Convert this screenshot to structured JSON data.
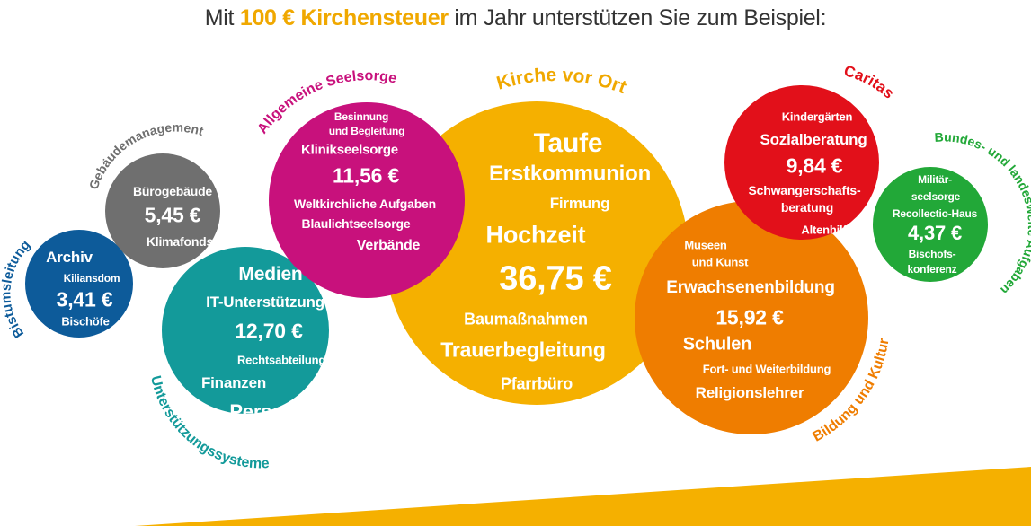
{
  "title": {
    "prefix": "Mit ",
    "highlight": "100 € Kirchensteuer",
    "suffix": " im Jahr unterstützen Sie zum Beispiel:"
  },
  "colors": {
    "orange_yellow": "#f5b000",
    "orange": "#ef7d00",
    "red": "#e2101a",
    "green": "#22a838",
    "teal": "#139a9a",
    "magenta": "#c8117c",
    "gray": "#6f6f6f",
    "blue": "#0d5b9a"
  },
  "categories": {
    "bistumsleitung": {
      "label": "Bistumsleitung",
      "items": [
        "Archiv",
        "Kiliansdom",
        "Bischöfe"
      ],
      "amount": "3,41 €"
    },
    "gebaeude": {
      "label": "Gebäudemanagement",
      "items": [
        "Bürogebäude",
        "Klimafonds"
      ],
      "amount": "5,45 €"
    },
    "seelsorge": {
      "label": "Allgemeine Seelsorge",
      "items": [
        "Besinnung",
        "und Begleitung",
        "Klinikseelsorge",
        "Weltkirchliche Aufgaben",
        "Blaulichtseelsorge",
        "Verbände"
      ],
      "amount": "11,56 €"
    },
    "unterstuetzung": {
      "label": "Unterstützungssysteme",
      "items": [
        "Medien",
        "IT-Unterstützung",
        "Rechtsabteilung",
        "Finanzen",
        "Personal"
      ],
      "amount": "12,70 €"
    },
    "kirche": {
      "label": "Kirche vor Ort",
      "items": [
        "Taufe",
        "Erstkommunion",
        "Firmung",
        "Hochzeit",
        "Baumaßnahmen",
        "Trauerbegleitung",
        "Pfarrbüro"
      ],
      "amount": "36,75 €"
    },
    "bildung": {
      "label": "Bildung und Kultur",
      "items": [
        "Museen",
        "und Kunst",
        "Erwachsenenbildung",
        "Schulen",
        "Fort- und Weiterbildung",
        "Religionslehrer"
      ],
      "amount": "15,92 €"
    },
    "caritas": {
      "label": "Caritas",
      "items": [
        "Kindergärten",
        "Sozialberatung",
        "Schwangerschafts-",
        "beratung",
        "Altenhilfe"
      ],
      "amount": "9,84 €"
    },
    "bundes": {
      "label": "Bundes- und landesweite Aufgaben",
      "items": [
        "Militär-",
        "seelsorge",
        "Recollectio-Haus",
        "Bischofs-",
        "konferenz"
      ],
      "amount": "4,37 €"
    }
  }
}
